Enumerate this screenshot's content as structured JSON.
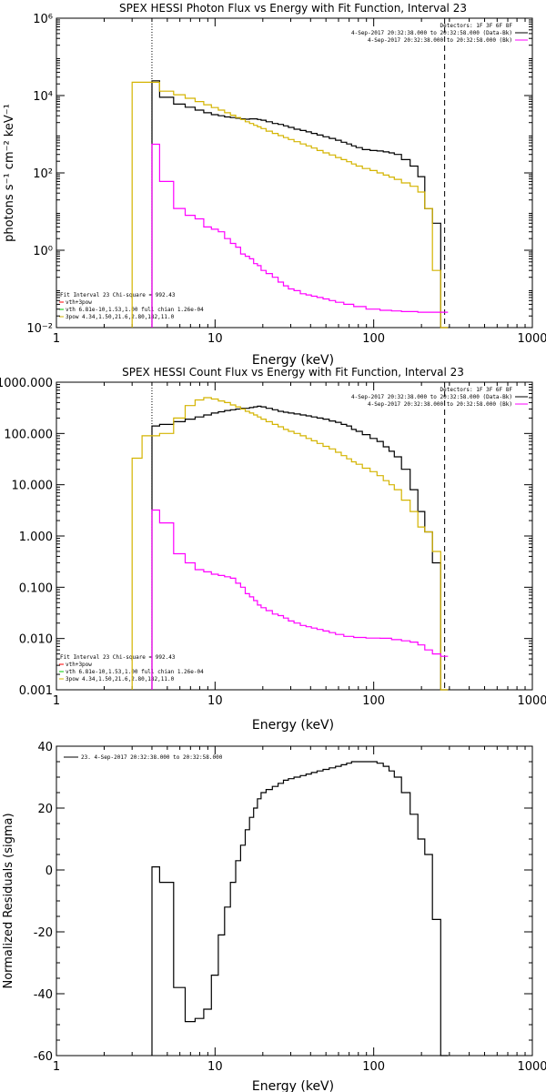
{
  "chart_data": [
    {
      "type": "line",
      "title": "SPEX HESSI Photon Flux vs Energy with Fit Function, Interval 23",
      "xlabel": "Energy (keV)",
      "ylabel": "photons s⁻¹ cm⁻² keV⁻¹",
      "xscale": "log",
      "yscale": "log",
      "xlim": [
        1,
        1000
      ],
      "ylim": [
        0.01,
        1000000
      ],
      "xticks": [
        1,
        10,
        100,
        1000
      ],
      "xtick_labels": [
        "1",
        "10",
        "100",
        "1000"
      ],
      "yticks": [
        0.01,
        1,
        100,
        10000,
        1000000
      ],
      "ytick_labels": [
        "10⁻²",
        "10⁰",
        "10²",
        "10⁴",
        "10⁶"
      ],
      "vlines": [
        {
          "x": 4,
          "style": "dotted"
        },
        {
          "x": 280,
          "style": "dashed"
        }
      ],
      "legend_top_right": [
        {
          "text": "Detectors: 1F 3F 6F 8F",
          "color": "#000000"
        },
        {
          "text": "4-Sep-2017 20:32:38.000 to 20:32:58.000 (Data-Bk)",
          "color": "#000000"
        },
        {
          "text": "4-Sep-2017 20:32:38.000 to 20:32:58.000 (Bk)",
          "color": "#ff00ff"
        }
      ],
      "legend_bottom_left": [
        {
          "text": "Fit Interval 23   Chi-square = 992.43",
          "color": "#000000"
        },
        {
          "text": "vth+3pow",
          "color": "#ff0000"
        },
        {
          "text": "vth 6.81e-10,1.53,1.00  full chian 1.26e-04",
          "color": "#00cc00"
        },
        {
          "text": "3pow 4.34,1.50,21.6,2.80,182,11.0",
          "color": "#d4b400"
        }
      ],
      "series": [
        {
          "color": "#000000",
          "x": [
            4,
            5,
            6,
            7,
            8,
            9,
            10,
            11,
            12,
            13,
            14,
            15,
            16,
            17,
            18,
            19,
            20,
            22,
            24,
            26,
            28,
            30,
            33,
            36,
            39,
            42,
            46,
            50,
            55,
            60,
            65,
            70,
            75,
            80,
            90,
            100,
            110,
            120,
            130,
            140,
            160,
            180,
            200,
            220,
            250,
            280
          ],
          "y": [
            24000,
            9000,
            6000,
            5000,
            4200,
            3600,
            3200,
            3000,
            2800,
            2700,
            2600,
            2500,
            2450,
            2500,
            2500,
            2400,
            2300,
            2100,
            1900,
            1800,
            1650,
            1500,
            1350,
            1250,
            1150,
            1050,
            950,
            860,
            780,
            700,
            620,
            560,
            500,
            450,
            400,
            380,
            370,
            350,
            330,
            300,
            220,
            150,
            80,
            12,
            5,
            0
          ]
        },
        {
          "color": "#d4b400",
          "x": [
            3,
            4,
            5,
            6,
            7,
            8,
            9,
            10,
            11,
            12,
            13,
            14,
            15,
            16,
            17,
            18,
            19,
            20,
            22,
            24,
            26,
            28,
            30,
            33,
            36,
            39,
            42,
            46,
            50,
            55,
            60,
            65,
            70,
            75,
            80,
            90,
            100,
            110,
            120,
            130,
            140,
            160,
            180,
            200,
            220,
            250,
            280
          ],
          "y": [
            22000,
            22000,
            13000,
            10500,
            8500,
            7000,
            5800,
            4900,
            4200,
            3600,
            3100,
            2700,
            2400,
            2100,
            1900,
            1700,
            1550,
            1400,
            1200,
            1050,
            920,
            820,
            730,
            640,
            560,
            500,
            440,
            380,
            330,
            290,
            250,
            220,
            195,
            170,
            150,
            130,
            115,
            100,
            88,
            78,
            68,
            55,
            45,
            32,
            12,
            0.3,
            0.01
          ]
        },
        {
          "color": "#ff00ff",
          "x": [
            4,
            5,
            6,
            7,
            8,
            9,
            10,
            11,
            12,
            13,
            14,
            15,
            16,
            17,
            18,
            19,
            20,
            22,
            24,
            26,
            28,
            30,
            33,
            36,
            39,
            42,
            46,
            50,
            55,
            60,
            70,
            80,
            100,
            120,
            140,
            160,
            180,
            200,
            220,
            250,
            280
          ],
          "y": [
            550,
            60,
            12,
            8,
            6.5,
            4,
            3.5,
            3,
            2,
            1.5,
            1.2,
            0.8,
            0.7,
            0.6,
            0.45,
            0.4,
            0.3,
            0.25,
            0.2,
            0.15,
            0.12,
            0.1,
            0.09,
            0.075,
            0.07,
            0.065,
            0.06,
            0.055,
            0.05,
            0.045,
            0.04,
            0.035,
            0.03,
            0.028,
            0.027,
            0.026,
            0.026,
            0.025,
            0.025,
            0.025,
            0.025
          ]
        }
      ]
    },
    {
      "type": "line",
      "title": "SPEX HESSI Count Flux vs Energy with Fit Function, Interval 23",
      "xlabel": "Energy (keV)",
      "ylabel": "",
      "xscale": "log",
      "yscale": "log",
      "xlim": [
        1,
        1000
      ],
      "ylim": [
        0.001,
        1000
      ],
      "xticks": [
        1,
        10,
        100,
        1000
      ],
      "xtick_labels": [
        "1",
        "10",
        "100",
        "1000"
      ],
      "yticks": [
        0.001,
        0.01,
        0.1,
        1,
        10,
        100,
        1000
      ],
      "ytick_labels": [
        "0.001",
        "0.010",
        "0.100",
        "1.000",
        "10.000",
        "100.000",
        "1000.000"
      ],
      "vlines": [
        {
          "x": 4,
          "style": "dotted"
        },
        {
          "x": 280,
          "style": "dashed"
        }
      ],
      "legend_top_right": [
        {
          "text": "Detectors: 1F 3F 6F 8F",
          "color": "#000000"
        },
        {
          "text": "4-Sep-2017 20:32:38.000 to 20:32:58.000 (Data-Bk)",
          "color": "#000000"
        },
        {
          "text": "4-Sep-2017 20:32:38.000 to 20:32:58.000 (Bk)",
          "color": "#ff00ff"
        }
      ],
      "legend_bottom_left": [
        {
          "text": "Fit Interval 23   Chi-square = 992.43",
          "color": "#000000"
        },
        {
          "text": "vth+3pow",
          "color": "#ff0000"
        },
        {
          "text": "vth 6.81e-10,1.53,1.00  full chian 1.26e-04",
          "color": "#00cc00"
        },
        {
          "text": "3pow 4.34,1.50,21.6,2.80,182,11.0",
          "color": "#d4b400"
        }
      ],
      "series": [
        {
          "color": "#000000",
          "x": [
            4,
            5,
            6,
            7,
            8,
            9,
            10,
            11,
            12,
            13,
            14,
            15,
            16,
            17,
            18,
            19,
            20,
            22,
            24,
            26,
            28,
            30,
            33,
            36,
            39,
            42,
            46,
            50,
            55,
            60,
            65,
            70,
            75,
            80,
            90,
            100,
            110,
            120,
            130,
            140,
            160,
            180,
            200,
            220,
            250,
            280
          ],
          "y": [
            140,
            150,
            170,
            190,
            210,
            230,
            250,
            265,
            280,
            290,
            300,
            310,
            310,
            320,
            330,
            340,
            330,
            310,
            290,
            270,
            260,
            250,
            240,
            230,
            220,
            210,
            200,
            190,
            175,
            165,
            150,
            140,
            120,
            110,
            95,
            80,
            70,
            55,
            45,
            35,
            20,
            8,
            3,
            1.2,
            0.3,
            0.001
          ]
        },
        {
          "color": "#d4b400",
          "x": [
            3,
            4,
            5,
            6,
            7,
            8,
            9,
            10,
            11,
            12,
            13,
            14,
            15,
            16,
            17,
            18,
            19,
            20,
            22,
            24,
            26,
            28,
            30,
            33,
            36,
            39,
            42,
            46,
            50,
            55,
            60,
            65,
            70,
            75,
            80,
            90,
            100,
            110,
            120,
            130,
            140,
            160,
            180,
            200,
            220,
            250,
            280
          ],
          "y": [
            33,
            90,
            100,
            200,
            350,
            450,
            500,
            470,
            430,
            400,
            360,
            330,
            300,
            270,
            250,
            230,
            210,
            190,
            170,
            150,
            135,
            120,
            110,
            100,
            90,
            80,
            72,
            64,
            56,
            50,
            43,
            37,
            32,
            28,
            25,
            21,
            18,
            15,
            12,
            10,
            8,
            5,
            3,
            1.5,
            1.2,
            0.5,
            0.001
          ]
        },
        {
          "color": "#ff00ff",
          "x": [
            4,
            5,
            6,
            7,
            8,
            9,
            10,
            11,
            12,
            13,
            14,
            15,
            16,
            17,
            18,
            19,
            20,
            22,
            24,
            26,
            28,
            30,
            33,
            36,
            39,
            42,
            46,
            50,
            55,
            60,
            70,
            80,
            100,
            120,
            140,
            160,
            180,
            200,
            220,
            250,
            280
          ],
          "y": [
            3.2,
            1.8,
            0.45,
            0.3,
            0.22,
            0.2,
            0.18,
            0.17,
            0.16,
            0.15,
            0.12,
            0.1,
            0.075,
            0.065,
            0.055,
            0.045,
            0.04,
            0.035,
            0.03,
            0.028,
            0.025,
            0.022,
            0.02,
            0.018,
            0.017,
            0.016,
            0.015,
            0.014,
            0.013,
            0.012,
            0.011,
            0.0105,
            0.0102,
            0.0101,
            0.0095,
            0.009,
            0.0085,
            0.0075,
            0.006,
            0.005,
            0.0045
          ]
        }
      ]
    },
    {
      "type": "line",
      "title": "",
      "xlabel": "Energy (keV)",
      "ylabel": "Normalized Residuals (sigma)",
      "xscale": "log",
      "yscale": "linear",
      "xlim": [
        1,
        1000
      ],
      "ylim": [
        -60,
        40
      ],
      "xticks": [
        1,
        10,
        100,
        1000
      ],
      "xtick_labels": [
        "1",
        "10",
        "100",
        "1000"
      ],
      "yticks": [
        -60,
        -40,
        -20,
        0,
        20,
        40
      ],
      "ytick_labels": [
        "-60",
        "-40",
        "-20",
        "0",
        "20",
        "40"
      ],
      "legend_top_right": [],
      "legend_bottom_left": [],
      "legend_top_left": [
        {
          "text": "23.  4-Sep-2017 20:32:38.000 to 20:32:58.000",
          "color": "#000000"
        }
      ],
      "series": [
        {
          "color": "#000000",
          "x": [
            4,
            5,
            6,
            7,
            8,
            9,
            10,
            11,
            12,
            13,
            14,
            15,
            16,
            17,
            18,
            19,
            20,
            22,
            24,
            26,
            28,
            30,
            33,
            36,
            39,
            42,
            46,
            50,
            55,
            60,
            65,
            70,
            75,
            80,
            90,
            100,
            110,
            120,
            130,
            140,
            160,
            180,
            200,
            220,
            250,
            280
          ],
          "y": [
            1,
            -4,
            -38,
            -49,
            -48,
            -45,
            -34,
            -21,
            -12,
            -4,
            3,
            8,
            13,
            17,
            20,
            23,
            25,
            26,
            27,
            28,
            29,
            29.5,
            30,
            30.5,
            31,
            31.5,
            32,
            32.5,
            33,
            33.5,
            34,
            34.5,
            35,
            35,
            35,
            35,
            34.5,
            33.5,
            32,
            30,
            25,
            18,
            10,
            5,
            -16,
            -60
          ]
        }
      ]
    }
  ]
}
